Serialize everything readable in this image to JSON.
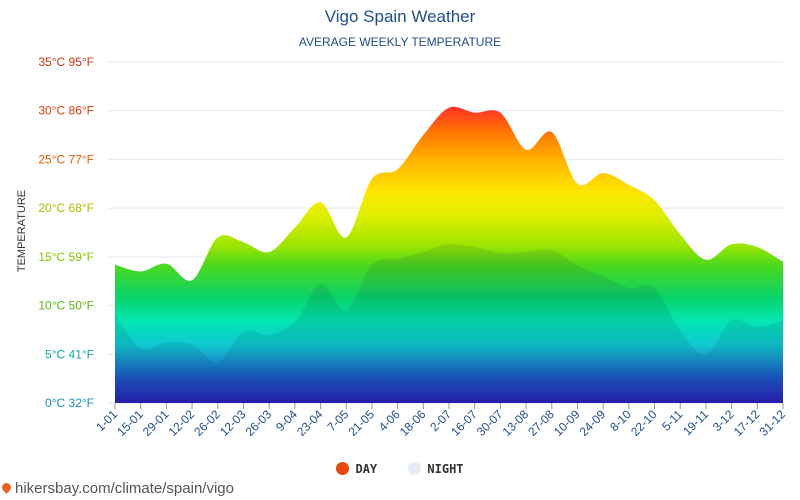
{
  "title": "Vigo Spain Weather",
  "subtitle": "AVERAGE WEEKLY TEMPERATURE",
  "ylabel": "TEMPERATURE",
  "legend": {
    "day": "DAY",
    "night": "NIGHT"
  },
  "colors": {
    "day": "#e8480f",
    "night": "#e6ecf2"
  },
  "source": "hikersbay.com/climate/spain/vigo",
  "chart_data": {
    "type": "area",
    "title": "Vigo Spain Weather",
    "subtitle": "AVERAGE WEEKLY TEMPERATURE",
    "ylabel": "TEMPERATURE",
    "ylim": [
      0,
      35
    ],
    "yticks": [
      0,
      5,
      10,
      15,
      20,
      25,
      30,
      35
    ],
    "ytick_labels": [
      "0°C 32°F",
      "5°C 41°F",
      "10°C 50°F",
      "15°C 59°F",
      "20°C 68°F",
      "25°C 77°F",
      "30°C 86°F",
      "35°C 95°F"
    ],
    "ytick_colors": [
      "#1a8fb5",
      "#10a9a4",
      "#5ab80e",
      "#8bc300",
      "#b0b800",
      "#e35e00",
      "#e23d0c",
      "#d8310e"
    ],
    "categories": [
      "1-01",
      "15-01",
      "29-01",
      "12-02",
      "26-02",
      "12-03",
      "26-03",
      "9-04",
      "23-04",
      "7-05",
      "21-05",
      "4-06",
      "18-06",
      "2-07",
      "16-07",
      "30-07",
      "13-08",
      "27-08",
      "10-09",
      "24-09",
      "8-10",
      "22-10",
      "5-11",
      "19-11",
      "3-12",
      "17-12",
      "31-12"
    ],
    "grid": true,
    "legend_position": "bottom-center",
    "series": [
      {
        "name": "DAY",
        "values": [
          14.2,
          13.5,
          14.3,
          12.6,
          17.0,
          16.5,
          15.5,
          18.0,
          20.6,
          17.0,
          23.0,
          24.0,
          27.5,
          30.3,
          29.8,
          29.8,
          26.0,
          27.8,
          22.5,
          23.6,
          22.4,
          20.8,
          17.3,
          14.7,
          16.3,
          16.0,
          14.5
        ]
      },
      {
        "name": "NIGHT",
        "values": [
          9.0,
          5.6,
          6.2,
          6.0,
          4.2,
          7.3,
          7.0,
          8.3,
          12.2,
          9.5,
          14.2,
          14.8,
          15.5,
          16.3,
          16.0,
          15.4,
          15.5,
          15.7,
          14.1,
          13.0,
          11.8,
          11.8,
          7.4,
          5.0,
          8.5,
          7.8,
          8.5
        ]
      }
    ]
  }
}
